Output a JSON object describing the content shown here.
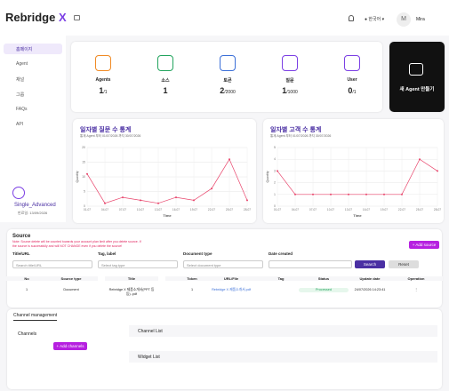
{
  "header": {
    "logo": "Rebridge",
    "logo_accent": "X",
    "language": "한국어",
    "avatar": "M",
    "user": "Mira"
  },
  "sidebar": {
    "items": [
      "홈페이지",
      "Agent",
      "채널",
      "그룹",
      "FAQs",
      "API"
    ],
    "plan": "Single_Advanced",
    "expiry": "만료일: 13/09/2026"
  },
  "stats": [
    {
      "label": "Agents",
      "value": "1",
      "limit": "/1",
      "color": "#f08a24"
    },
    {
      "label": "소스",
      "value": "1",
      "limit": "",
      "color": "#22a45d"
    },
    {
      "label": "토큰",
      "value": "2",
      "limit": "/2000",
      "color": "#3b6fd8"
    },
    {
      "label": "질문",
      "value": "1",
      "limit": "/1000",
      "color": "#7b3fe4"
    },
    {
      "label": "User",
      "value": "0",
      "limit": "/1",
      "color": "#7b3fe4"
    }
  ],
  "create_agent": "새 Agent 만들기",
  "chart_data": [
    {
      "type": "line",
      "title": "일자별 질문 수 통계",
      "subtitle": "통계 Agent 부터 01/07/2026 까지 30/07/2026",
      "x_label": "Time",
      "y_label": "Quantity",
      "categories": [
        "01-07",
        "04-07",
        "07-07",
        "10-07",
        "13-07",
        "16-07",
        "19-07",
        "22-07",
        "25-07",
        "28-07"
      ],
      "values": [
        11,
        1,
        3,
        2,
        1,
        3,
        2,
        6,
        16,
        2
      ],
      "color": "#e8436a",
      "ylim": [
        0,
        20
      ],
      "yticks": [
        0,
        5,
        10,
        15,
        20
      ],
      "grid": true
    },
    {
      "type": "line",
      "title": "일자별 고객 수 통계",
      "subtitle": "통계 Agent 부터 01/07/2026 까지 30/07/2026",
      "x_label": "Time",
      "y_label": "Quantity",
      "categories": [
        "01-07",
        "04-07",
        "07-07",
        "10-07",
        "13-07",
        "16-07",
        "19-07",
        "22-07",
        "25-07",
        "28-07"
      ],
      "values": [
        3,
        1,
        1,
        1,
        1,
        1,
        1,
        1,
        4,
        3
      ],
      "color": "#e8436a",
      "ylim": [
        0,
        5
      ],
      "yticks": [
        0,
        1,
        2,
        3,
        4,
        5
      ],
      "grid": true
    }
  ],
  "source": {
    "title": "Source",
    "note": "Note: Source delete will be counted towards your account plan limit after you delete source. If the source is successfully and will NOT CHANGE even if you delete the source!",
    "add": "+ Add source",
    "filters": [
      {
        "label": "Title/URL",
        "placeholder": "Search title/URL"
      },
      {
        "label": "Tag, label",
        "placeholder": "Select tag type"
      },
      {
        "label": "Document type",
        "placeholder": "Select document type"
      },
      {
        "label": "Date created",
        "placeholder": ""
      }
    ],
    "search": "Search",
    "reset": "Reset"
  },
  "table": {
    "headers": [
      "No",
      "Source type",
      "Title",
      "Token",
      "URL/File",
      "Tag",
      "Status",
      "Update date",
      "Operation"
    ],
    "rows": [
      [
        "1",
        "Document",
        "Rebridge X 제품소개서(PPT 등등)..pdf",
        "1",
        "Rebridge X 제품소개서.pdf",
        "",
        "Processed",
        "24/07/2026 14:23:41",
        "⋮"
      ]
    ]
  },
  "channel": {
    "tab": "Channel management",
    "channels": "Channels",
    "add": "+ Add channels",
    "list": "Channel List",
    "widget": "Widget List"
  }
}
